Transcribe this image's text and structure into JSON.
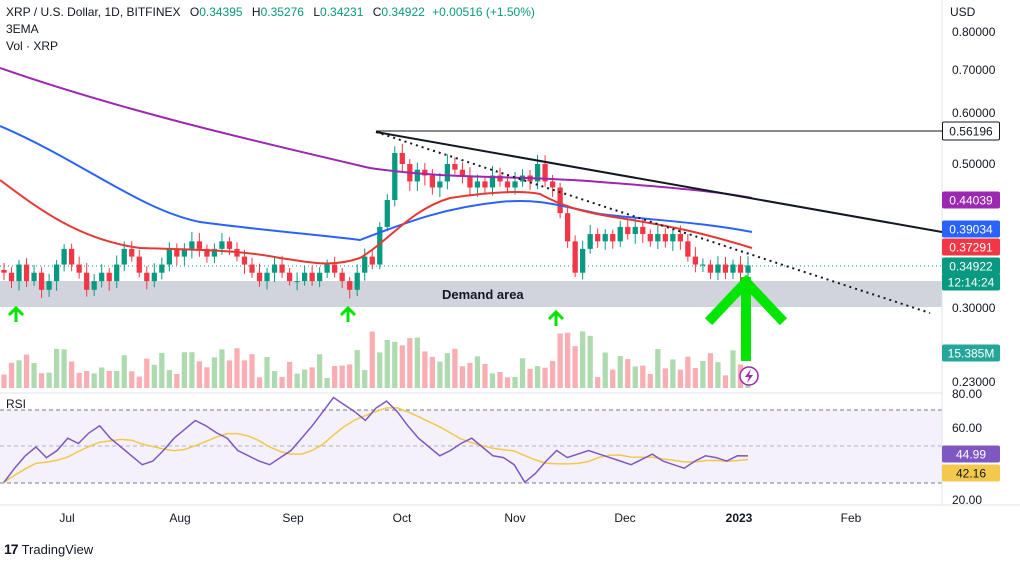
{
  "header": {
    "symbol": "XRP / U.S. Dollar, 1D, BITFINEX",
    "o_label": "O",
    "o_value": "0.34395",
    "h_label": "H",
    "h_value": "0.35276",
    "l_label": "L",
    "l_value": "0.34231",
    "c_label": "C",
    "c_value": "0.34922",
    "change": "+0.00516 (+1.50%)",
    "indicator1": "3EMA",
    "indicator2": "Vol · XRP"
  },
  "currency": "USD",
  "annotations": {
    "demand_area": "Demand area"
  },
  "branding": {
    "logo_text": "TradingView"
  },
  "rsi_label": "RSI",
  "colors": {
    "up": "#089981",
    "down": "#f23645",
    "ema_short": "#e53935",
    "ema_mid": "#2962ff",
    "ema_long": "#9c27b0",
    "rsi": "#7e57c2",
    "rsi_ma": "#f2c94c",
    "arrow": "#00e600",
    "demand_zone": "#d1d4dc"
  },
  "chart_data": {
    "type": "candlestick",
    "title": "XRP / U.S. Dollar, 1D, BITFINEX",
    "price_axis": {
      "ticks": [
        "0.80000",
        "0.70000",
        "0.60000",
        "0.50000",
        "0.30000",
        "0.23000"
      ],
      "scale": "log"
    },
    "price_tags": [
      {
        "label": "0.56196",
        "style": "white"
      },
      {
        "label": "0.44039",
        "style": "purple"
      },
      {
        "label": "0.39034",
        "style": "blue"
      },
      {
        "label": "0.37291",
        "style": "red"
      },
      {
        "label": "0.34922",
        "style": "green"
      },
      {
        "label": "12:14:24",
        "style": "green"
      },
      {
        "label": "15.385M",
        "style": "green"
      }
    ],
    "time_axis": [
      "Jul",
      "Aug",
      "Sep",
      "Oct",
      "Nov",
      "Dec",
      "2023",
      "Feb"
    ],
    "close_series_approx": [
      0.34,
      0.33,
      0.35,
      0.33,
      0.34,
      0.32,
      0.33,
      0.35,
      0.37,
      0.35,
      0.34,
      0.32,
      0.33,
      0.34,
      0.33,
      0.35,
      0.37,
      0.36,
      0.34,
      0.33,
      0.34,
      0.35,
      0.37,
      0.36,
      0.37,
      0.38,
      0.37,
      0.36,
      0.37,
      0.38,
      0.37,
      0.36,
      0.35,
      0.34,
      0.33,
      0.34,
      0.35,
      0.34,
      0.33,
      0.33,
      0.34,
      0.33,
      0.34,
      0.35,
      0.34,
      0.33,
      0.32,
      0.34,
      0.36,
      0.35,
      0.4,
      0.44,
      0.52,
      0.5,
      0.47,
      0.49,
      0.48,
      0.46,
      0.47,
      0.5,
      0.49,
      0.48,
      0.46,
      0.47,
      0.46,
      0.48,
      0.47,
      0.46,
      0.47,
      0.48,
      0.47,
      0.5,
      0.47,
      0.46,
      0.42,
      0.38,
      0.34,
      0.37,
      0.39,
      0.38,
      0.39,
      0.38,
      0.4,
      0.39,
      0.4,
      0.39,
      0.38,
      0.39,
      0.38,
      0.39,
      0.38,
      0.36,
      0.35,
      0.35,
      0.34,
      0.35,
      0.34,
      0.35,
      0.34,
      0.349
    ],
    "ema_levels": {
      "short": "0.37291",
      "mid": "0.39034",
      "long": "0.44039"
    },
    "demand_area": {
      "low": 0.3,
      "high": 0.32
    },
    "resistance_level": 0.56196,
    "rsi": {
      "axis_ticks": [
        "80.00",
        "60.00",
        "20.00"
      ],
      "upper_band": 70,
      "lower_band": 30,
      "current": "44.99",
      "ma": "42.16",
      "values_approx": [
        30,
        38,
        45,
        50,
        44,
        48,
        55,
        52,
        58,
        62,
        55,
        50,
        45,
        40,
        42,
        48,
        55,
        60,
        65,
        62,
        58,
        55,
        48,
        45,
        42,
        40,
        44,
        48,
        55,
        62,
        70,
        78,
        74,
        70,
        65,
        72,
        76,
        70,
        62,
        55,
        50,
        45,
        48,
        52,
        55,
        50,
        45,
        44,
        40,
        30,
        35,
        42,
        48,
        44,
        46,
        48,
        46,
        44,
        42,
        40,
        43,
        46,
        42,
        40,
        38,
        42,
        45,
        44,
        42,
        45,
        44.99
      ]
    }
  }
}
